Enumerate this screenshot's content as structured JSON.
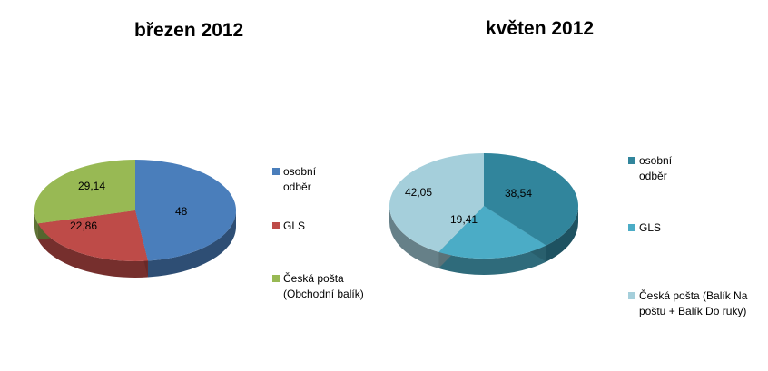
{
  "chart_data": [
    {
      "type": "pie",
      "title": "březen 2012",
      "series": [
        {
          "label": "osobní odběr",
          "value": 48,
          "value_label": "48",
          "color": "#4a7ebb"
        },
        {
          "label": "GLS",
          "value": 22.86,
          "value_label": "22,86",
          "color": "#be4b48"
        },
        {
          "label": "Česká pošta (Obchodní balík)",
          "value": 29.14,
          "value_label": "29,14",
          "color": "#98b954"
        }
      ],
      "legend_position": "right",
      "style": "3d"
    },
    {
      "type": "pie",
      "title": "květen 2012",
      "series": [
        {
          "label": "osobní odběr",
          "value": 38.54,
          "value_label": "38,54",
          "color": "#31859c"
        },
        {
          "label": "GLS",
          "value": 19.41,
          "value_label": "19,41",
          "color": "#4bacc6"
        },
        {
          "label": "Česká pošta (Balík Na poštu + Balík Do ruky)",
          "value": 42.05,
          "value_label": "42,05",
          "color": "#a5cfdb"
        }
      ],
      "legend_position": "right",
      "style": "3d"
    }
  ]
}
